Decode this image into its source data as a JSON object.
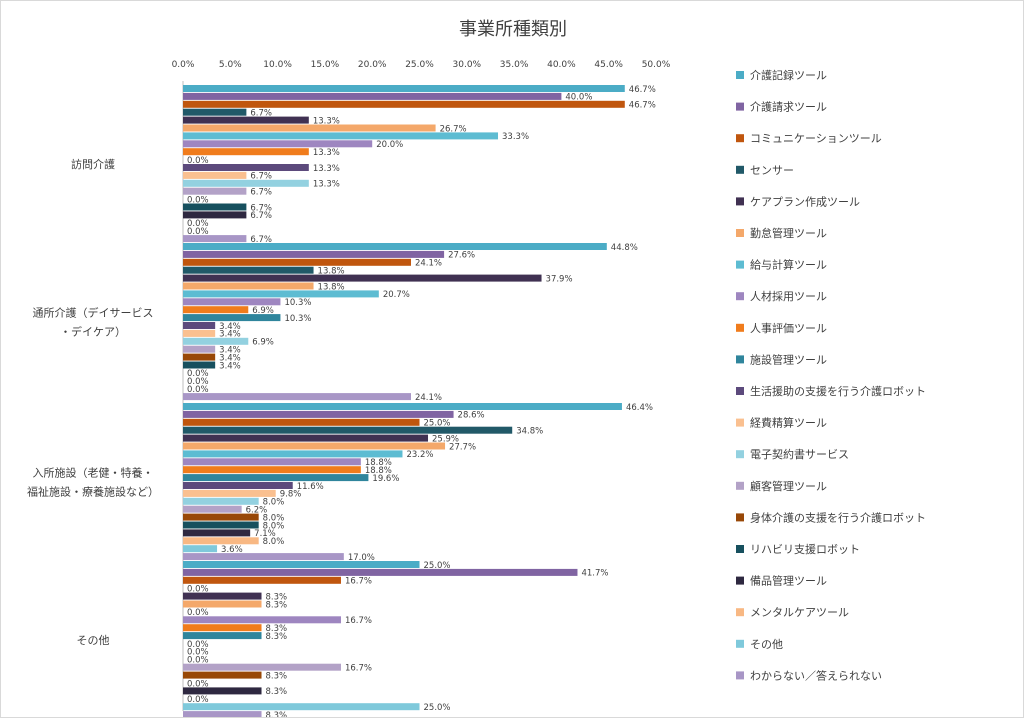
{
  "chart_data": {
    "type": "bar",
    "orientation": "horizontal",
    "title": "事業所種類別",
    "xlim": [
      0,
      50
    ],
    "x_ticks": [
      "0.0%",
      "5.0%",
      "10.0%",
      "15.0%",
      "20.0%",
      "25.0%",
      "30.0%",
      "35.0%",
      "40.0%",
      "45.0%",
      "50.0%"
    ],
    "x_axis_position": "top",
    "grid": false,
    "legend_position": "right",
    "categories": [
      {
        "label_lines": [
          "訪問介護"
        ]
      },
      {
        "label_lines": [
          "通所介護（デイサービス",
          "・デイケア）"
        ]
      },
      {
        "label_lines": [
          "入所施設（老健・特養・",
          "福祉施設・療養施設など）"
        ]
      },
      {
        "label_lines": [
          "その他"
        ]
      }
    ],
    "series": [
      {
        "name": "介護記録ツール",
        "color": "#4BACC6",
        "values": [
          46.7,
          44.8,
          46.4,
          25.0
        ]
      },
      {
        "name": "介護請求ツール",
        "color": "#8064A2",
        "values": [
          40.0,
          27.6,
          28.6,
          41.7
        ]
      },
      {
        "name": "コミュニケーションツール",
        "color": "#C0560E",
        "values": [
          46.7,
          24.1,
          25.0,
          16.7
        ]
      },
      {
        "name": "センサー",
        "color": "#215968",
        "values": [
          6.7,
          13.8,
          34.8,
          0.0
        ]
      },
      {
        "name": "ケアプラン作成ツール",
        "color": "#403152",
        "values": [
          13.3,
          37.9,
          25.9,
          8.3
        ]
      },
      {
        "name": "勤怠管理ツール",
        "color": "#F4A86A",
        "values": [
          26.7,
          13.8,
          27.7,
          8.3
        ]
      },
      {
        "name": "給与計算ツール",
        "color": "#5DBCD2",
        "values": [
          33.3,
          20.7,
          23.2,
          0.0
        ]
      },
      {
        "name": "人材採用ツール",
        "color": "#9E86C0",
        "values": [
          20.0,
          10.3,
          18.8,
          16.7
        ]
      },
      {
        "name": "人事評価ツール",
        "color": "#F07C1C",
        "values": [
          13.3,
          6.9,
          18.8,
          8.3
        ]
      },
      {
        "name": "施設管理ツール",
        "color": "#2F859C",
        "values": [
          0.0,
          10.3,
          19.6,
          8.3
        ]
      },
      {
        "name": "生活援助の支援を行う介護ロボット",
        "color": "#5C4A7C",
        "values": [
          13.3,
          3.4,
          11.6,
          0.0
        ]
      },
      {
        "name": "経費精算ツール",
        "color": "#FAC090",
        "values": [
          6.7,
          3.4,
          9.8,
          0.0
        ]
      },
      {
        "name": "電子契約書サービス",
        "color": "#93D1E0",
        "values": [
          13.3,
          6.9,
          8.0,
          0.0
        ]
      },
      {
        "name": "顧客管理ツール",
        "color": "#B3A2C7",
        "values": [
          6.7,
          3.4,
          6.2,
          16.7
        ]
      },
      {
        "name": "身体介護の支援を行う介護ロボット",
        "color": "#984807",
        "values": [
          0.0,
          3.4,
          8.0,
          8.3
        ]
      },
      {
        "name": "リハビリ支援ロボット",
        "color": "#17505E",
        "values": [
          6.7,
          3.4,
          8.0,
          0.0
        ]
      },
      {
        "name": "備品管理ツール",
        "color": "#2E2840",
        "values": [
          6.7,
          0.0,
          7.1,
          8.3
        ]
      },
      {
        "name": "メンタルケアツール",
        "color": "#F8B883",
        "values": [
          0.0,
          0.0,
          8.0,
          0.0
        ]
      },
      {
        "name": "その他",
        "color": "#7FC9DB",
        "values": [
          0.0,
          0.0,
          3.6,
          25.0
        ]
      },
      {
        "name": "わからない／答えられない",
        "color": "#A896C6",
        "values": [
          6.7,
          24.1,
          17.0,
          8.3
        ]
      }
    ]
  }
}
